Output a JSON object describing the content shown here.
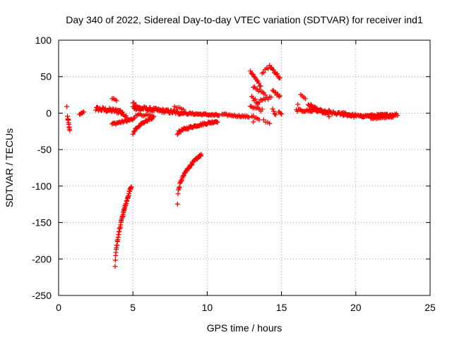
{
  "chart_data": {
    "type": "scatter",
    "title": "Day 340 of 2022, Sidereal Day-to-day VTEC variation (SDTVAR) for receiver ind1",
    "xlabel": "GPS time / hours",
    "ylabel": "SDTVAR / TECUs",
    "xlim": [
      0,
      25
    ],
    "ylim": [
      -250,
      100
    ],
    "xticks": [
      0,
      5,
      10,
      15,
      20,
      25
    ],
    "yticks": [
      -250,
      -200,
      -150,
      -100,
      -50,
      0,
      50,
      100
    ],
    "grid": true,
    "marker": "+",
    "series_color": "#ff0000",
    "segments": [
      {
        "x0": 0.6,
        "y0": -5,
        "x1": 0.75,
        "y1": -25,
        "n": 10,
        "jitter": 2
      },
      {
        "x0": 1.4,
        "y0": -2,
        "x1": 1.7,
        "y1": 2,
        "n": 6,
        "jitter": 1
      },
      {
        "x0": 2.5,
        "y0": 6,
        "x1": 4.3,
        "y1": 2,
        "n": 40,
        "jitter": 3
      },
      {
        "x0": 3.6,
        "y0": 20,
        "x1": 3.9,
        "y1": 18,
        "n": 4,
        "jitter": 1
      },
      {
        "x0": 4.0,
        "y0": 5,
        "x1": 4.6,
        "y1": -6,
        "n": 10,
        "jitter": 2
      },
      {
        "x0": 3.6,
        "y0": -15,
        "x1": 5.1,
        "y1": -8,
        "n": 25,
        "jitter": 1.5
      },
      {
        "x0": 3.8,
        "y0": -210,
        "x1": 4.9,
        "y1": -100,
        "n": 60,
        "jitter": 2,
        "curve": 0.6
      },
      {
        "x0": 5.0,
        "y0": -30,
        "x1": 6.4,
        "y1": -6,
        "n": 25,
        "jitter": 1.5,
        "curve": 0.5
      },
      {
        "x0": 5.0,
        "y0": 15,
        "x1": 5.5,
        "y1": 3,
        "n": 8,
        "jitter": 2
      },
      {
        "x0": 5.0,
        "y0": 8,
        "x1": 8.3,
        "y1": 0,
        "n": 80,
        "jitter": 2.5
      },
      {
        "x0": 5.2,
        "y0": -2,
        "x1": 6.3,
        "y1": -3,
        "n": 12,
        "jitter": 1.5
      },
      {
        "x0": 7.8,
        "y0": 8,
        "x1": 8.4,
        "y1": 6,
        "n": 6,
        "jitter": 1.5
      },
      {
        "x0": 8.0,
        "y0": -125,
        "x1": 9.6,
        "y1": -57,
        "n": 50,
        "jitter": 1.5,
        "curve": 0.4
      },
      {
        "x0": 8.0,
        "y0": -28,
        "x1": 10.7,
        "y1": -11,
        "n": 60,
        "jitter": 1.5,
        "curve": 0.6
      },
      {
        "x0": 8.3,
        "y0": 0,
        "x1": 10.8,
        "y1": -3,
        "n": 40,
        "jitter": 1.2
      },
      {
        "x0": 11.0,
        "y0": -2,
        "x1": 12.8,
        "y1": -5,
        "n": 25,
        "jitter": 1.2
      },
      {
        "x0": 12.9,
        "y0": 58,
        "x1": 13.6,
        "y1": 36,
        "n": 12,
        "jitter": 2
      },
      {
        "x0": 13.1,
        "y0": 37,
        "x1": 13.9,
        "y1": 25,
        "n": 10,
        "jitter": 2
      },
      {
        "x0": 13.0,
        "y0": 22,
        "x1": 13.4,
        "y1": 14,
        "n": 6,
        "jitter": 2
      },
      {
        "x0": 12.9,
        "y0": 10,
        "x1": 13.7,
        "y1": 4,
        "n": 10,
        "jitter": 2
      },
      {
        "x0": 13.0,
        "y0": -3,
        "x1": 13.5,
        "y1": -8,
        "n": 6,
        "jitter": 1.5
      },
      {
        "x0": 13.4,
        "y0": 15,
        "x1": 14.3,
        "y1": 22,
        "n": 10,
        "jitter": 2
      },
      {
        "x0": 13.7,
        "y0": 55,
        "x1": 14.1,
        "y1": 62,
        "n": 5,
        "jitter": 2
      },
      {
        "x0": 14.2,
        "y0": 65,
        "x1": 14.9,
        "y1": 48,
        "n": 12,
        "jitter": 2
      },
      {
        "x0": 14.4,
        "y0": 30,
        "x1": 14.9,
        "y1": 23,
        "n": 8,
        "jitter": 2
      },
      {
        "x0": 13.8,
        "y0": -10,
        "x1": 14.2,
        "y1": -14,
        "n": 4,
        "jitter": 1.5
      },
      {
        "x0": 14.4,
        "y0": 5,
        "x1": 14.6,
        "y1": -3,
        "n": 4,
        "jitter": 1
      },
      {
        "x0": 14.8,
        "y0": 2,
        "x1": 15.0,
        "y1": -2,
        "n": 4,
        "jitter": 1
      },
      {
        "x0": 16.0,
        "y0": 4,
        "x1": 17.0,
        "y1": 3,
        "n": 15,
        "jitter": 1.5
      },
      {
        "x0": 16.3,
        "y0": 25,
        "x1": 16.6,
        "y1": 20,
        "n": 4,
        "jitter": 1
      },
      {
        "x0": 16.8,
        "y0": 12,
        "x1": 18.2,
        "y1": -3,
        "n": 25,
        "jitter": 2
      },
      {
        "x0": 17.0,
        "y0": 4,
        "x1": 20.0,
        "y1": -4,
        "n": 50,
        "jitter": 2
      },
      {
        "x0": 19.0,
        "y0": 0,
        "x1": 20.5,
        "y1": -5,
        "n": 20,
        "jitter": 1.5
      },
      {
        "x0": 20.3,
        "y0": -4,
        "x1": 22.8,
        "y1": -2,
        "n": 45,
        "jitter": 1.5
      },
      {
        "x0": 21.0,
        "y0": -7,
        "x1": 22.5,
        "y1": -5,
        "n": 20,
        "jitter": 1
      }
    ],
    "isolated_points": [
      {
        "x": 0.55,
        "y": 9
      },
      {
        "x": 16.1,
        "y": 12
      },
      {
        "x": 13.1,
        "y": -12
      },
      {
        "x": 18.2,
        "y": 4
      }
    ]
  }
}
